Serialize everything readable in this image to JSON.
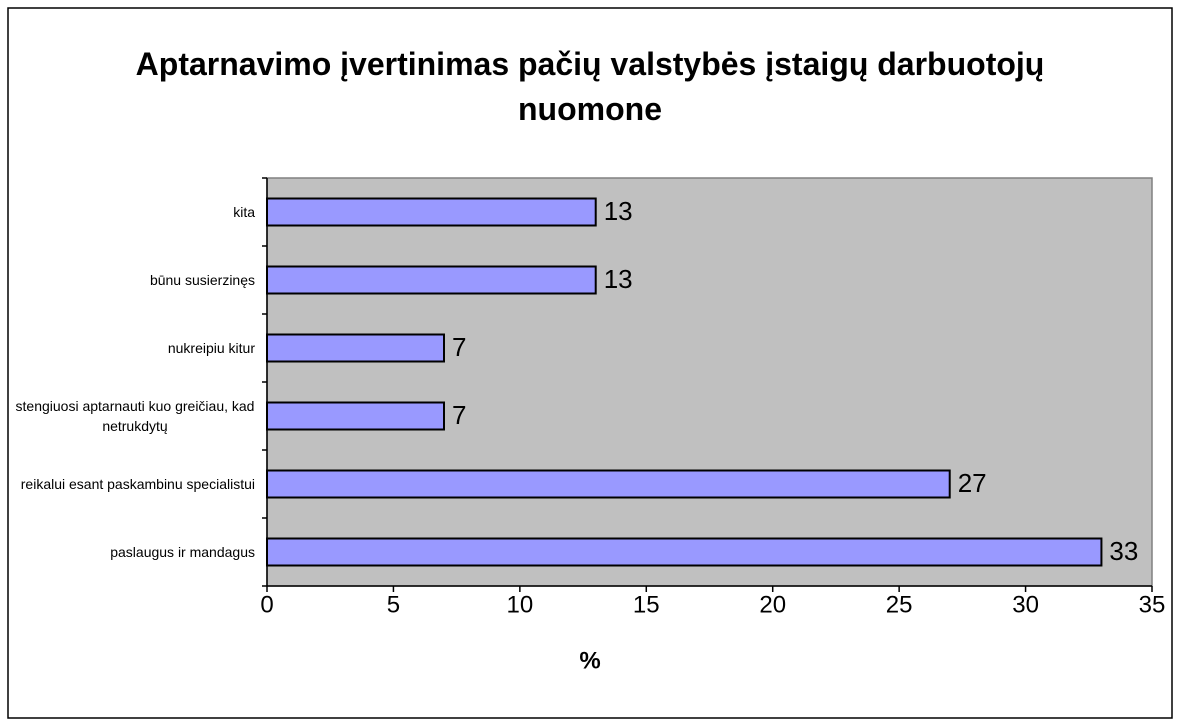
{
  "chart_data": {
    "type": "bar",
    "orientation": "horizontal",
    "title": "Aptarnavimo įvertinimas pačių valstybės įstaigų darbuotojų nuomone",
    "x_label": "%",
    "categories": [
      "kita",
      "būnu susierzinęs",
      "nukreipiu kitur",
      "stengiuosi aptarnauti kuo greičiau, kad netrukdytų",
      "reikalui esant paskambinu specialistui",
      "paslaugus ir mandagus"
    ],
    "values": [
      13,
      13,
      7,
      7,
      27,
      33
    ],
    "color": "#9999ff",
    "xlim": [
      0,
      35
    ],
    "xticks": [
      0,
      5,
      10,
      15,
      20,
      25,
      30,
      35
    ],
    "grid": false
  }
}
